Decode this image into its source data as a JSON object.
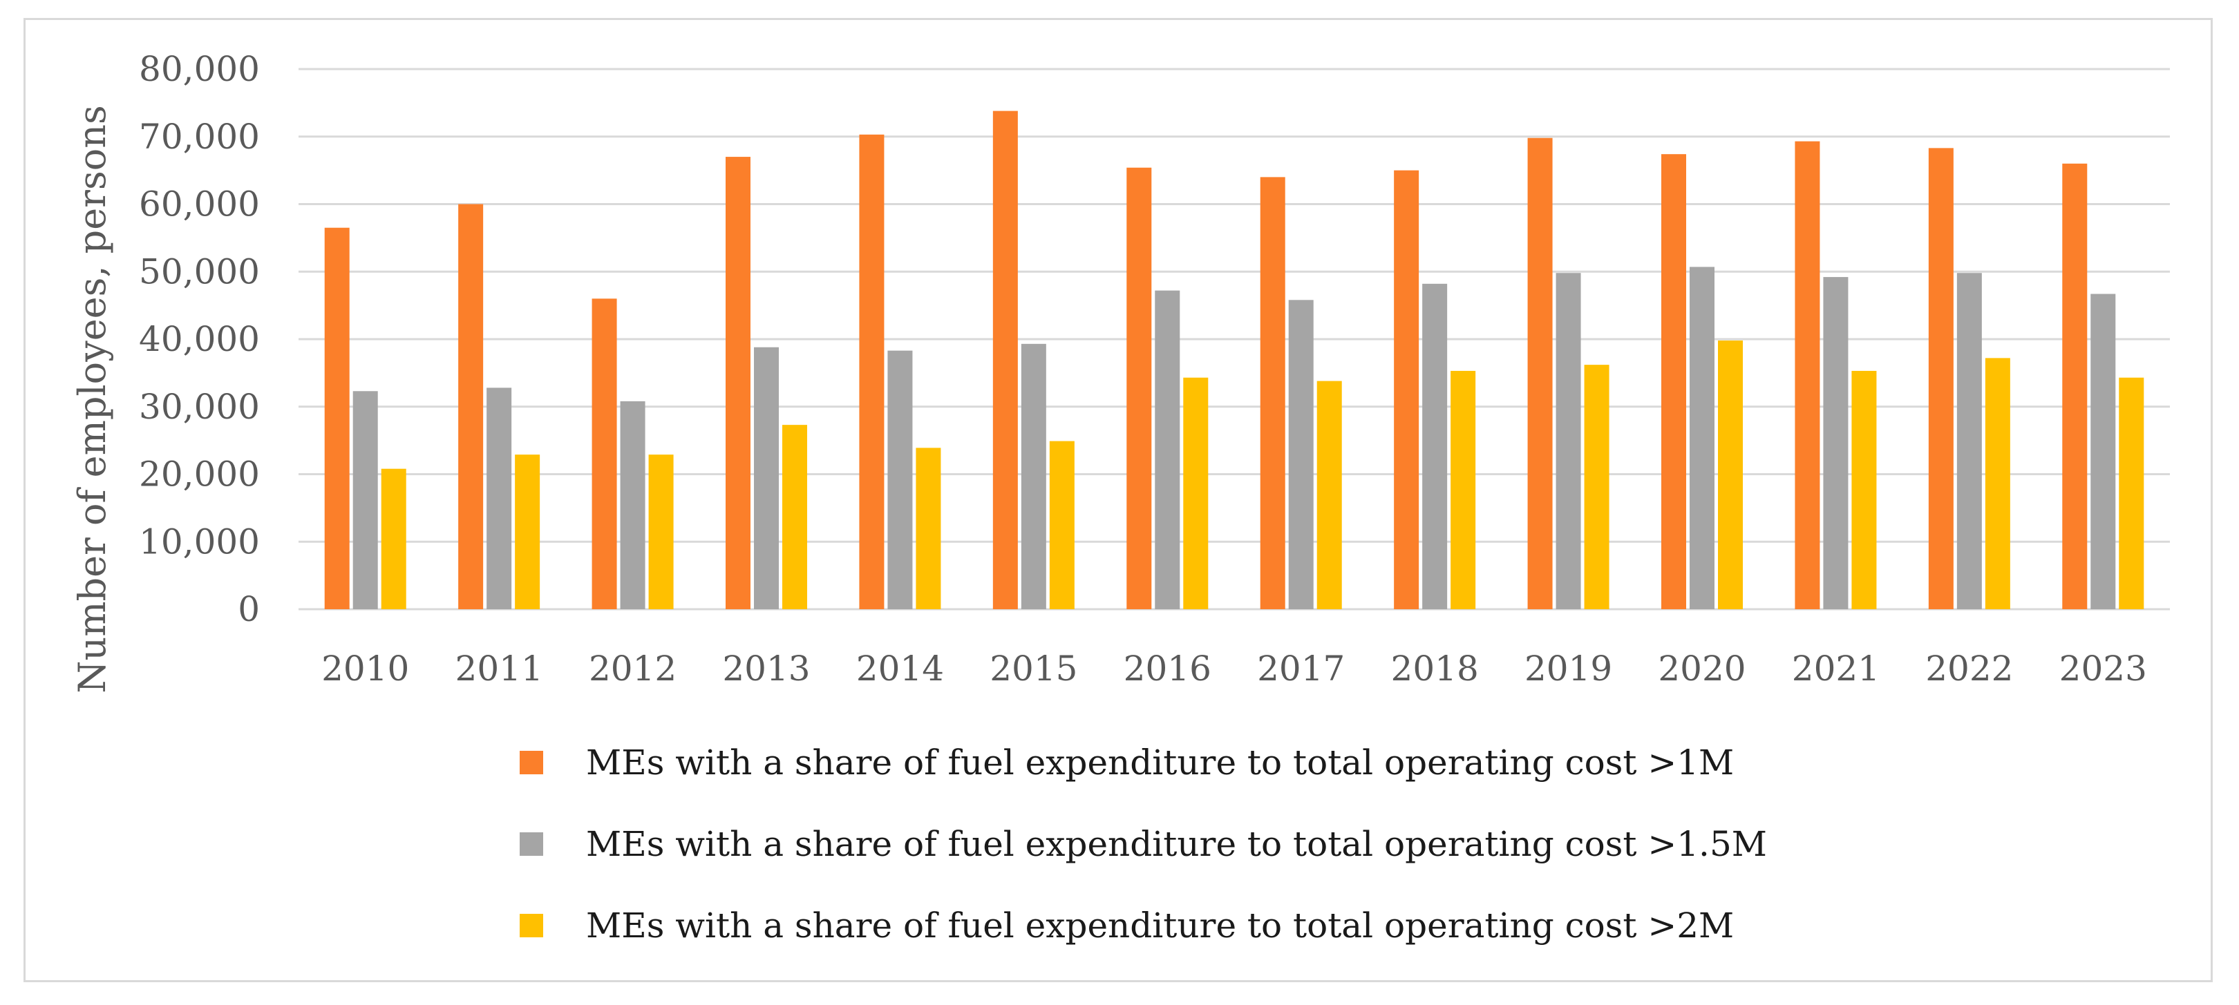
{
  "chart_data": {
    "type": "bar",
    "title": "",
    "xlabel": "",
    "ylabel": "Number of employees, persons",
    "ylim": [
      0,
      80000
    ],
    "yticks": [
      0,
      10000,
      20000,
      30000,
      40000,
      50000,
      60000,
      70000,
      80000
    ],
    "ytick_labels": [
      "0",
      "10,000",
      "20,000",
      "30,000",
      "40,000",
      "50,000",
      "60,000",
      "70,000",
      "80,000"
    ],
    "grid": true,
    "legend_position": "bottom",
    "categories": [
      "2010",
      "2011",
      "2012",
      "2013",
      "2014",
      "2015",
      "2016",
      "2017",
      "2018",
      "2019",
      "2020",
      "2021",
      "2022",
      "2023"
    ],
    "series": [
      {
        "name": "MEs with a share of fuel expenditure to total operating cost >1M",
        "color": "#fb7f2a",
        "values": [
          56500,
          60000,
          46000,
          67000,
          70300,
          73800,
          65400,
          64000,
          65000,
          69800,
          67400,
          69300,
          68300,
          66000
        ]
      },
      {
        "name": "MEs with a share of fuel expenditure to total operating cost >1.5M",
        "color": "#a5a5a5",
        "values": [
          32300,
          32800,
          30800,
          38800,
          38300,
          39300,
          47200,
          45800,
          48200,
          49800,
          50700,
          49200,
          49800,
          46700
        ]
      },
      {
        "name": "MEs with a share of fuel expenditure to total operating cost >2M",
        "color": "#ffc000",
        "values": [
          20800,
          22900,
          22900,
          27300,
          23900,
          24900,
          34300,
          33800,
          35300,
          36200,
          39800,
          35300,
          37200,
          34300
        ]
      }
    ]
  }
}
